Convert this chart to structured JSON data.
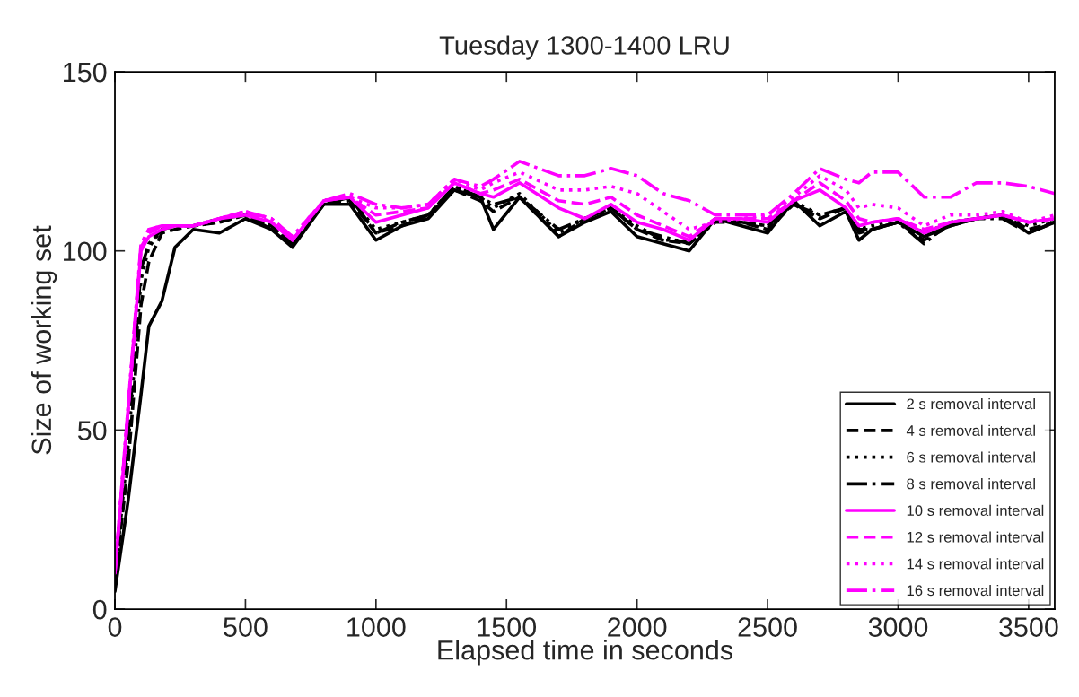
{
  "chart_data": {
    "type": "line",
    "title": "Tuesday 1300-1400 LRU",
    "xlabel": "Elapsed time in seconds",
    "ylabel": "Size of working set",
    "x": [
      0,
      50,
      100,
      130,
      180,
      230,
      300,
      400,
      500,
      600,
      680,
      800,
      900,
      1000,
      1100,
      1200,
      1300,
      1400,
      1450,
      1550,
      1700,
      1800,
      1900,
      2000,
      2100,
      2200,
      2300,
      2400,
      2500,
      2600,
      2700,
      2800,
      2850,
      2900,
      3000,
      3100,
      3200,
      3300,
      3400,
      3500,
      3600
    ],
    "xlim": [
      0,
      3600
    ],
    "xticks": [
      0,
      500,
      1000,
      1500,
      2000,
      2500,
      3000,
      3500
    ],
    "ylim": [
      0,
      150
    ],
    "yticks": [
      0,
      50,
      100,
      150
    ],
    "grid": false,
    "legend": "bottom right",
    "marker": "none",
    "series": [
      {
        "name": "2 s removal interval",
        "color": "#000000",
        "line_style": "solid",
        "values": [
          5,
          30,
          60,
          79,
          86,
          101,
          106,
          105,
          109,
          106,
          101,
          113,
          113,
          103,
          107,
          109,
          117,
          115,
          106,
          115,
          104,
          108,
          111,
          104,
          102,
          100,
          109,
          107,
          105,
          114,
          107,
          111,
          103,
          106,
          108,
          104,
          107,
          109,
          110,
          105,
          108
        ]
      },
      {
        "name": "4 s removal interval",
        "color": "#000000",
        "line_style": "dashed",
        "values": [
          8,
          40,
          85,
          97,
          105,
          106,
          107,
          108,
          110,
          107,
          102,
          113,
          114,
          105,
          107,
          110,
          117,
          114,
          111,
          115,
          104,
          109,
          112,
          106,
          103,
          102,
          108,
          108,
          106,
          113,
          109,
          112,
          106,
          106,
          108,
          103,
          107,
          109,
          110,
          106,
          108
        ]
      },
      {
        "name": "6 s removal interval",
        "color": "#000000",
        "line_style": "dotted",
        "values": [
          9,
          45,
          92,
          101,
          106,
          107,
          107,
          108,
          110,
          107,
          102,
          114,
          115,
          106,
          108,
          110,
          118,
          115,
          112,
          116,
          105,
          109,
          112,
          107,
          103,
          103,
          109,
          108,
          107,
          114,
          110,
          112,
          106,
          107,
          109,
          105,
          108,
          109,
          110,
          107,
          109
        ]
      },
      {
        "name": "8 s removal interval",
        "color": "#000000",
        "line_style": "dashdot",
        "values": [
          9,
          48,
          95,
          102,
          106,
          107,
          107,
          109,
          110,
          106,
          102,
          113,
          115,
          105,
          108,
          110,
          118,
          115,
          113,
          115,
          106,
          109,
          112,
          106,
          104,
          102,
          109,
          108,
          107,
          113,
          110,
          112,
          105,
          106,
          108,
          102,
          108,
          109,
          109,
          105,
          108
        ]
      },
      {
        "name": "10 s removal interval",
        "color": "#ff00ff",
        "line_style": "solid",
        "values": [
          10,
          55,
          100,
          104,
          106,
          107,
          107,
          109,
          110,
          108,
          103,
          114,
          115,
          108,
          110,
          112,
          119,
          116,
          115,
          119,
          112,
          109,
          113,
          108,
          106,
          103,
          109,
          109,
          108,
          114,
          117,
          112,
          107,
          108,
          109,
          105,
          108,
          109,
          110,
          108,
          109
        ]
      },
      {
        "name": "12 s removal interval",
        "color": "#ff00ff",
        "line_style": "dashed",
        "values": [
          10,
          55,
          101,
          105,
          107,
          107,
          107,
          109,
          111,
          108,
          103,
          114,
          115,
          110,
          111,
          112,
          119,
          116,
          117,
          120,
          114,
          113,
          115,
          110,
          107,
          104,
          109,
          109,
          109,
          114,
          119,
          114,
          109,
          108,
          109,
          106,
          108,
          109,
          110,
          108,
          109
        ]
      },
      {
        "name": "14 s removal interval",
        "color": "#ff00ff",
        "line_style": "dotted",
        "values": [
          10,
          56,
          101,
          106,
          107,
          107,
          107,
          109,
          111,
          109,
          104,
          114,
          115,
          112,
          112,
          113,
          120,
          117,
          119,
          122,
          117,
          117,
          118,
          116,
          111,
          106,
          108,
          109,
          110,
          115,
          121,
          117,
          112,
          113,
          112,
          107,
          110,
          110,
          111,
          108,
          110
        ]
      },
      {
        "name": "16 s removal interval",
        "color": "#ff00ff",
        "line_style": "dashdot",
        "values": [
          10,
          56,
          102,
          106,
          107,
          107,
          107,
          109,
          111,
          109,
          104,
          114,
          116,
          113,
          112,
          113,
          120,
          118,
          120,
          125,
          121,
          121,
          123,
          121,
          116,
          114,
          110,
          110,
          110,
          116,
          123,
          120,
          119,
          122,
          122,
          115,
          115,
          119,
          119,
          118,
          116
        ]
      }
    ]
  }
}
